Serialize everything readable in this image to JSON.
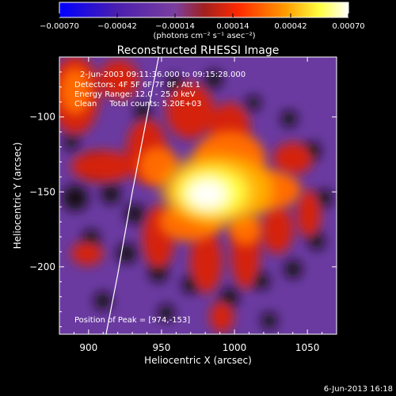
{
  "chart_data": {
    "type": "heatmap",
    "title": "Reconstructed RHESSI Image",
    "xlabel": "Heliocentric X (arcsec)",
    "ylabel": "Heliocentric Y (arcsec)",
    "xlim": [
      880,
      1070
    ],
    "ylim": [
      -245,
      -60
    ],
    "x_ticks": [
      900,
      950,
      1000,
      1050
    ],
    "x_tick_labels": [
      "900",
      "950",
      "1000",
      "1050"
    ],
    "y_ticks": [
      -100,
      -150,
      -200
    ],
    "y_tick_labels": [
      "−100",
      "−150",
      "−200"
    ],
    "colorbar": {
      "min": -0.0007,
      "max": 0.0007,
      "ticks": [
        -0.0007,
        -0.00042,
        -0.00014,
        0.00014,
        0.00042,
        0.0007
      ],
      "tick_labels": [
        "−0.00070",
        "−0.00042",
        "−0.00014",
        "0.00014",
        "0.00042",
        "0.00070"
      ],
      "unit_label": "(photons cm⁻² s⁻¹ asec⁻²)",
      "colors": [
        "#0000ff",
        "#4b1fae",
        "#7b3fa0",
        "#a02020",
        "#ff2a00",
        "#ff9a00",
        "#ffff40",
        "#ffffff"
      ]
    },
    "annotations": [
      "2-Jun-2003 09:11:36.000 to 09:15:28.000",
      "Detectors: 4F 5F 6F 7F 8F, Att 1",
      "Energy Range: 12.0 - 25.0 keV",
      "Clean     Total counts: 5.20E+03"
    ],
    "peak_label": "Position of Peak = [974,-153]",
    "peak": {
      "x": 974,
      "y": -153
    },
    "limb_curve": {
      "x": [
        912,
        920,
        930,
        940,
        948
      ],
      "y": [
        -245,
        -205,
        -150,
        -100,
        -60
      ]
    },
    "grid": false,
    "legend": "none"
  },
  "footer": {
    "date": "6-Jun-2013 16:18"
  }
}
